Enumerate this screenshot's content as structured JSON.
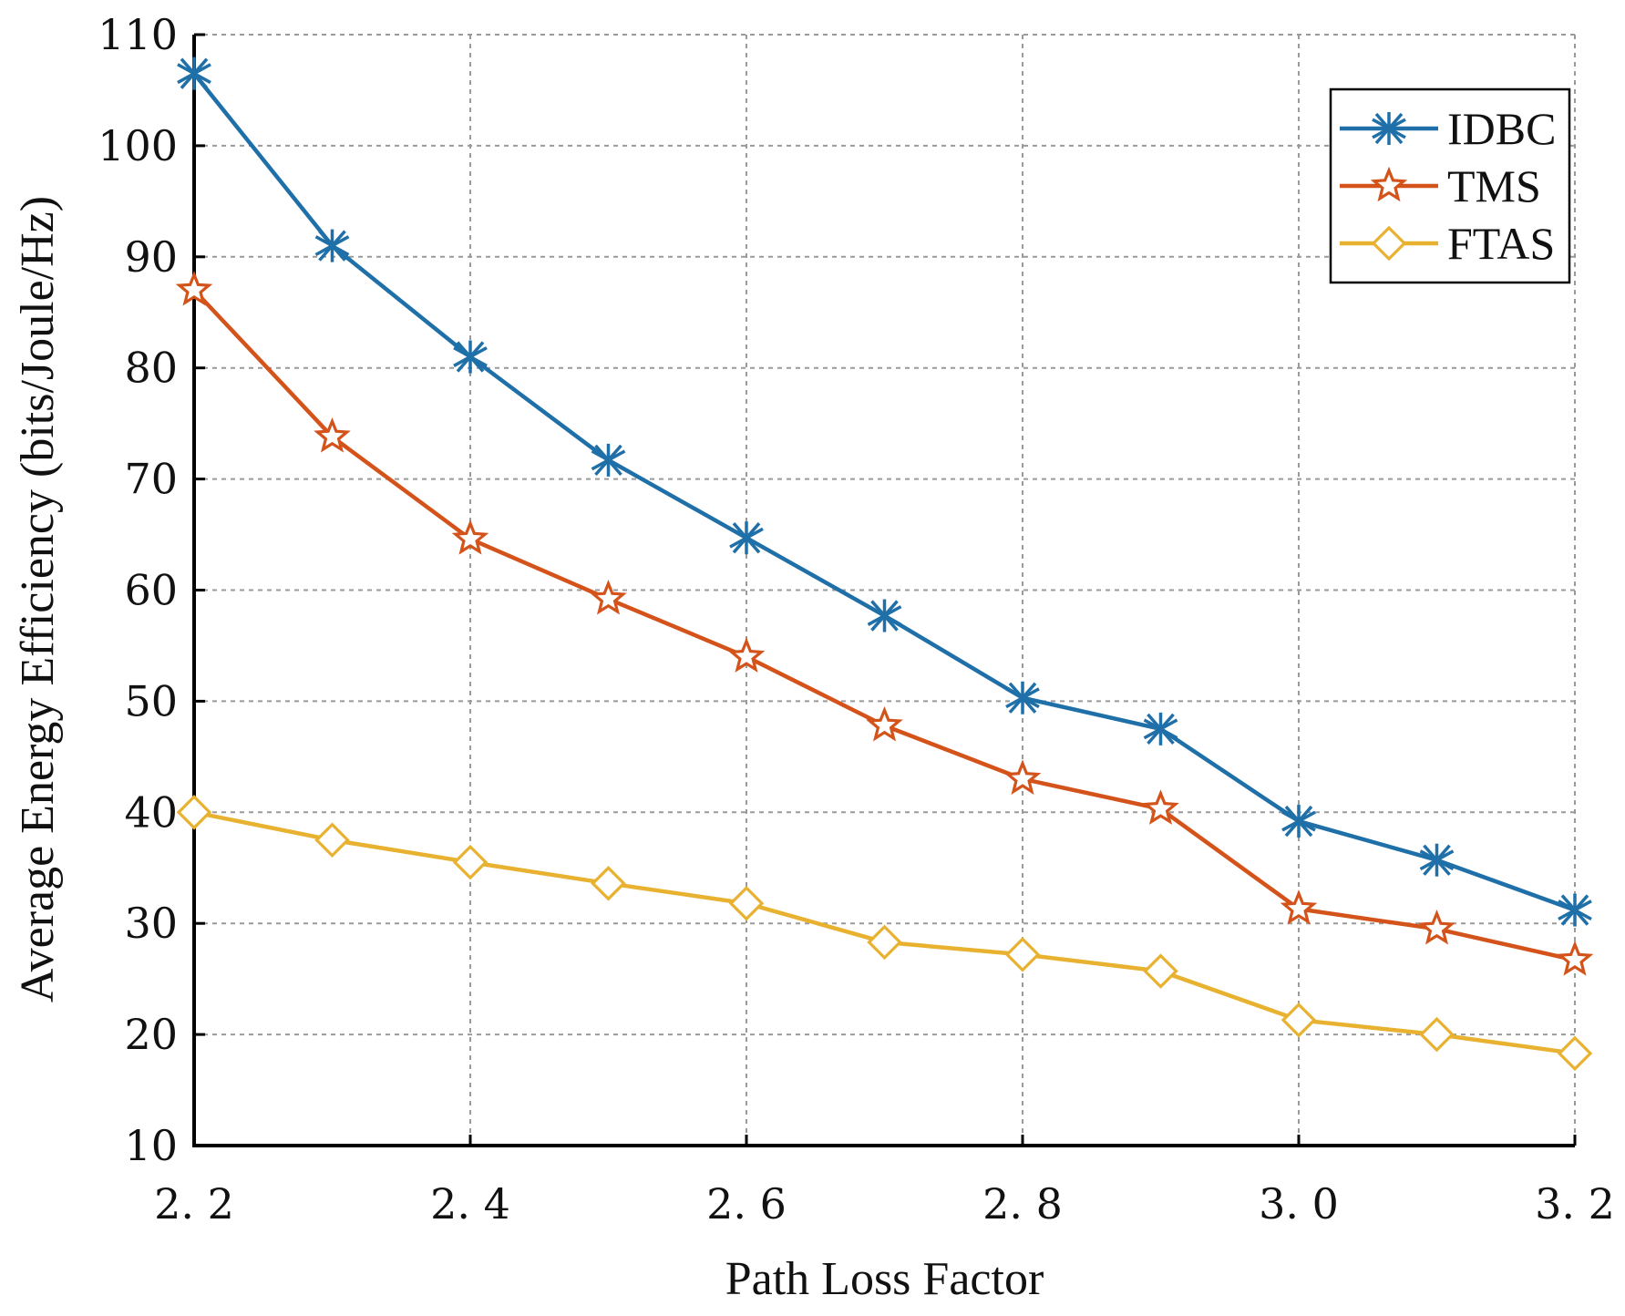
{
  "chart_data": {
    "type": "line",
    "title": "",
    "xlabel": "Path Loss Factor",
    "ylabel": "Average Energy Efficiency (bits/Joule/Hz)",
    "xlim": [
      2.2,
      3.2
    ],
    "ylim": [
      10,
      110
    ],
    "grid": true,
    "legend_position": "top-right",
    "x": [
      2.2,
      2.3,
      2.4,
      2.5,
      2.6,
      2.7,
      2.8,
      2.9,
      3.0,
      3.1,
      3.2
    ],
    "x_ticks": [
      2.2,
      2.4,
      2.6,
      2.8,
      3.0,
      3.2
    ],
    "x_tick_labels": [
      "2. 2",
      "2. 4",
      "2. 6",
      "2. 8",
      "3. 0",
      "3. 2"
    ],
    "y_ticks": [
      10,
      20,
      30,
      40,
      50,
      60,
      70,
      80,
      90,
      100,
      110
    ],
    "y_tick_labels": [
      "10",
      "20",
      "30",
      "40",
      "50",
      "60",
      "70",
      "80",
      "90",
      "100",
      "110"
    ],
    "series": [
      {
        "name": "IDBC",
        "color": "#1f6fa8",
        "marker": "asterisk",
        "values": [
          106.5,
          91,
          81,
          71.7,
          64.7,
          57.7,
          50.3,
          47.5,
          39.2,
          35.7,
          31.2
        ]
      },
      {
        "name": "TMS",
        "color": "#d4531a",
        "marker": "star",
        "values": [
          87,
          73.8,
          64.6,
          59.2,
          54,
          47.8,
          43,
          40.3,
          31.3,
          29.5,
          26.7
        ]
      },
      {
        "name": "FTAS",
        "color": "#e8b230",
        "marker": "diamond",
        "values": [
          40,
          37.5,
          35.5,
          33.6,
          31.8,
          28.3,
          27.2,
          25.7,
          21.3,
          20,
          18.3
        ]
      }
    ]
  }
}
